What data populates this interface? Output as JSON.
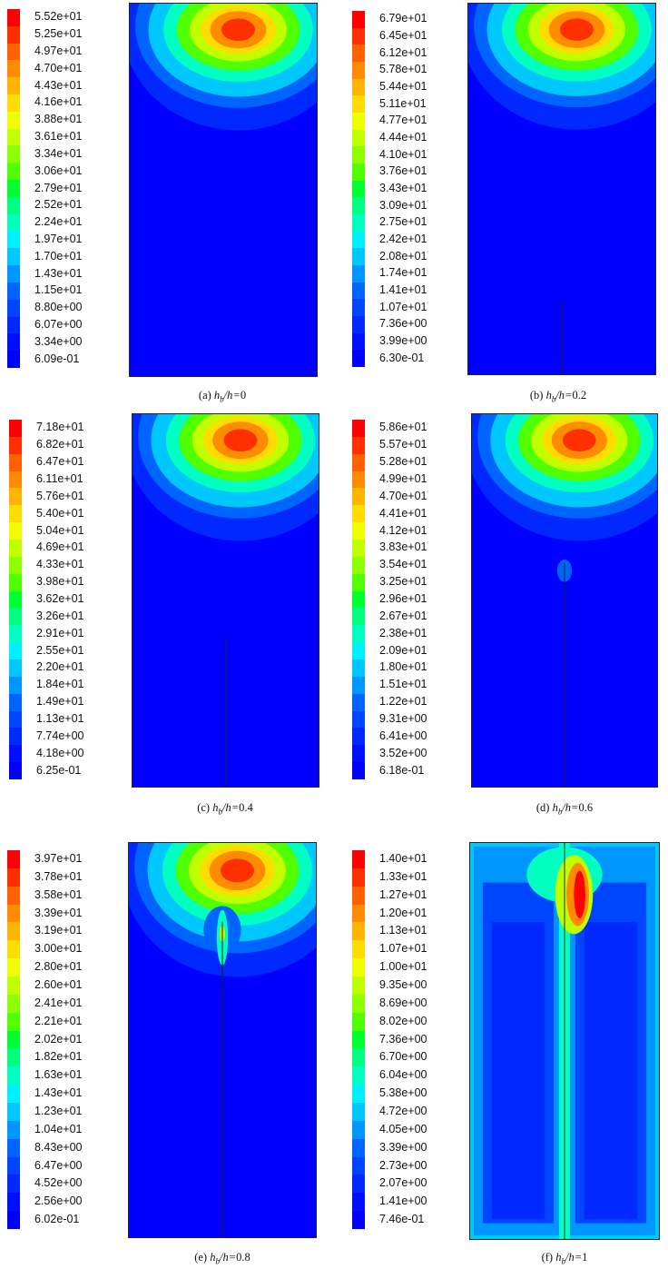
{
  "jet_colors": [
    "#ff0000",
    "#ff3000",
    "#ff6000",
    "#ff8c00",
    "#ffb400",
    "#ffdc00",
    "#f0ff00",
    "#c0ff00",
    "#8cff00",
    "#50ff00",
    "#00ff30",
    "#00ff80",
    "#00ffc0",
    "#00f0ff",
    "#00c8ff",
    "#0096ff",
    "#0064ff",
    "#0046ff",
    "#0028ff",
    "#0010ff",
    "#0000ff"
  ],
  "panels": [
    {
      "id": "a",
      "letter": "(a)",
      "ratio": "0",
      "labels": [
        "5.52e+01",
        "5.25e+01",
        "4.97e+01",
        "4.70e+01",
        "4.43e+01",
        "4.16e+01",
        "3.88e+01",
        "3.61e+01",
        "3.34e+01",
        "3.06e+01",
        "2.79e+01",
        "2.52e+01",
        "2.24e+01",
        "1.97e+01",
        "1.70e+01",
        "1.43e+01",
        "1.15e+01",
        "8.80e+00",
        "6.07e+00",
        "3.34e+00",
        "6.09e-01"
      ]
    },
    {
      "id": "b",
      "letter": "(b)",
      "ratio": "0.2",
      "labels": [
        "6.79e+01",
        "6.45e+01",
        "6.12e+01",
        "5.78e+01",
        "5.44e+01",
        "5.11e+01",
        "4.77e+01",
        "4.44e+01",
        "4.10e+01",
        "3.76e+01",
        "3.43e+01",
        "3.09e+01",
        "2.75e+01",
        "2.42e+01",
        "2.08e+01",
        "1.74e+01",
        "1.41e+01",
        "1.07e+01",
        "7.36e+00",
        "3.99e+00",
        "6.30e-01"
      ]
    },
    {
      "id": "c",
      "letter": "(c)",
      "ratio": "0.4",
      "labels": [
        "7.18e+01",
        "6.82e+01",
        "6.47e+01",
        "6.11e+01",
        "5.76e+01",
        "5.40e+01",
        "5.04e+01",
        "4.69e+01",
        "4.33e+01",
        "3.98e+01",
        "3.62e+01",
        "3.26e+01",
        "2.91e+01",
        "2.55e+01",
        "2.20e+01",
        "1.84e+01",
        "1.49e+01",
        "1.13e+01",
        "7.74e+00",
        "4.18e+00",
        "6.25e-01"
      ]
    },
    {
      "id": "d",
      "letter": "(d)",
      "ratio": "0.6",
      "labels": [
        "5.86e+01",
        "5.57e+01",
        "5.28e+01",
        "4.99e+01",
        "4.70e+01",
        "4.41e+01",
        "4.12e+01",
        "3.83e+01",
        "3.54e+01",
        "3.25e+01",
        "2.96e+01",
        "2.67e+01",
        "2.38e+01",
        "2.09e+01",
        "1.80e+01",
        "1.51e+01",
        "1.22e+01",
        "9.31e+00",
        "6.41e+00",
        "3.52e+00",
        "6.18e-01"
      ]
    },
    {
      "id": "e",
      "letter": "(e)",
      "ratio": "0.8",
      "labels": [
        "3.97e+01",
        "3.78e+01",
        "3.58e+01",
        "3.39e+01",
        "3.19e+01",
        "3.00e+01",
        "2.80e+01",
        "2.60e+01",
        "2.41e+01",
        "2.21e+01",
        "2.02e+01",
        "1.82e+01",
        "1.63e+01",
        "1.43e+01",
        "1.23e+01",
        "1.04e+01",
        "8.43e+00",
        "6.47e+00",
        "4.52e+00",
        "2.56e+00",
        "6.02e-01"
      ]
    },
    {
      "id": "f",
      "letter": "(f)",
      "ratio": "1",
      "labels": [
        "1.40e+01",
        "1.33e+01",
        "1.27e+01",
        "1.20e+01",
        "1.13e+01",
        "1.07e+01",
        "1.00e+01",
        "9.35e+00",
        "8.69e+00",
        "8.02e+00",
        "7.36e+00",
        "6.70e+00",
        "6.04e+00",
        "5.38e+00",
        "4.72e+00",
        "4.05e+00",
        "3.39e+00",
        "2.73e+00",
        "2.07e+00",
        "1.41e+00",
        "7.46e-01"
      ]
    }
  ],
  "caption_var": "h",
  "caption_sub": "b",
  "caption_den": "/h="
}
